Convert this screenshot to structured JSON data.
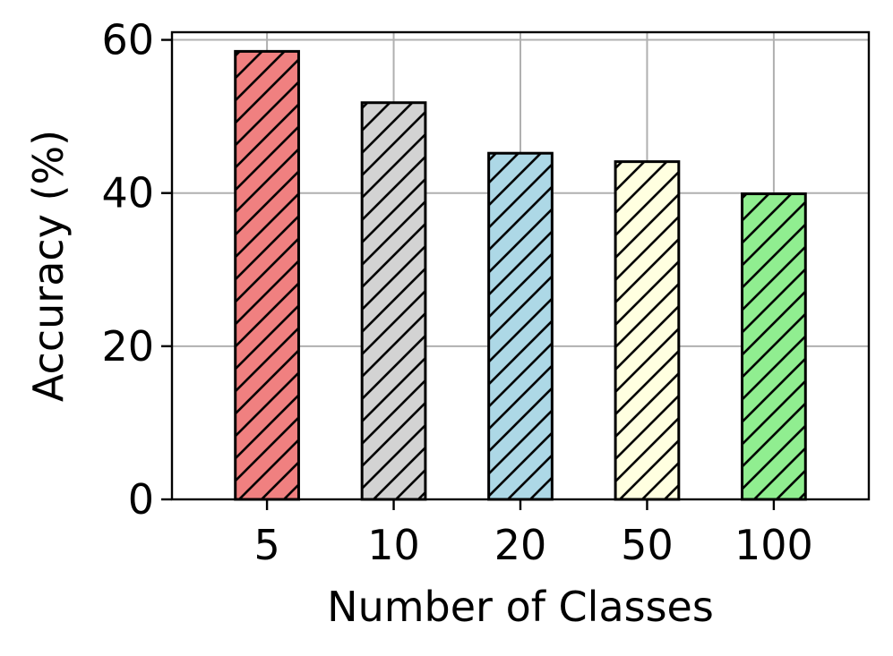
{
  "chart_data": {
    "type": "bar",
    "title": "",
    "xlabel": "Number of Classes",
    "ylabel": "Accuracy (%)",
    "categories": [
      "5",
      "10",
      "20",
      "50",
      "100"
    ],
    "values": [
      58.5,
      51.8,
      45.2,
      44.1,
      39.9
    ],
    "bar_colors": [
      "#f08080",
      "#d3d3d3",
      "#add8e6",
      "#ffffe0",
      "#90ee90"
    ],
    "edge_color": "#000000",
    "hatch": "diagonal",
    "ylim": [
      0,
      61
    ],
    "yticks": [
      0,
      20,
      40,
      60
    ],
    "ytick_labels": [
      "0",
      "20",
      "40",
      "60"
    ],
    "grid": true,
    "grid_color": "#b0b0b0",
    "legend": "none"
  }
}
